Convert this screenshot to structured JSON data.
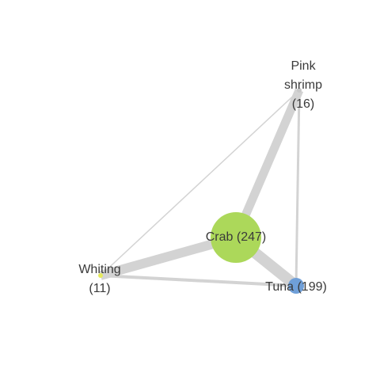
{
  "network": {
    "nodes": [
      {
        "id": "crab",
        "label_lines": [
          "Crab (247)"
        ],
        "name": "Crab",
        "count": 247,
        "color": "#acd85a"
      },
      {
        "id": "tuna",
        "label_lines": [
          "Tuna (199)"
        ],
        "name": "Tuna",
        "count": 199,
        "color": "#6f9fd8"
      },
      {
        "id": "pink-shrimp",
        "label_lines": [
          "Pink",
          "shrimp",
          "(16)"
        ],
        "name": "Pink shrimp",
        "count": 16,
        "color": "#c8c8c8"
      },
      {
        "id": "whiting",
        "label_lines": [
          "Whiting",
          "(11)"
        ],
        "name": "Whiting",
        "count": 11,
        "color": "#e6ea5c"
      }
    ],
    "edges": [
      {
        "source": "crab",
        "target": "tuna"
      },
      {
        "source": "crab",
        "target": "pink-shrimp"
      },
      {
        "source": "crab",
        "target": "whiting"
      },
      {
        "source": "pink-shrimp",
        "target": "tuna"
      },
      {
        "source": "whiting",
        "target": "tuna"
      },
      {
        "source": "whiting",
        "target": "pink-shrimp"
      }
    ],
    "edge_color": "#d3d3d3"
  }
}
